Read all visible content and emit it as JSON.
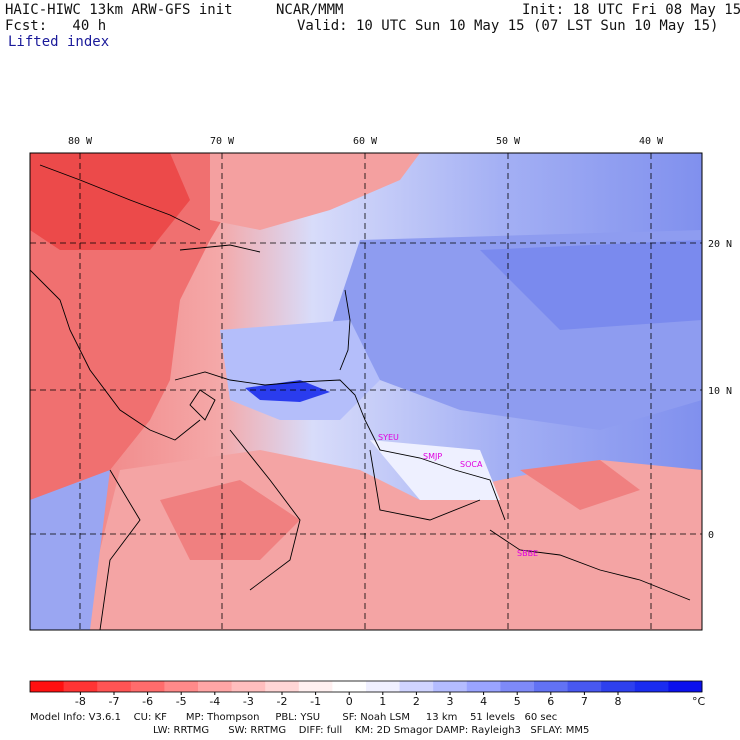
{
  "header": {
    "model_title": "HAIC-HIWC 13km ARW-GFS init",
    "org": "NCAR/MMM",
    "init": "Init: 18 UTC Fri 08 May 15",
    "forecast": "Fcst:   40 h",
    "valid": "Valid: 10 UTC Sun 10 May 15 (07 LST Sun 10 May 15)",
    "field": "Lifted index"
  },
  "map": {
    "lon_labels": [
      "80 W",
      "70 W",
      "60 W",
      "50 W",
      "40 W"
    ],
    "lat_labels": [
      "20 N",
      "10 N",
      "0"
    ],
    "stations": [
      "SYEU",
      "SMJP",
      "SOCA",
      "SBBE"
    ],
    "colors": {
      "warm": "#f06a6a",
      "cool": "#7f8ff0",
      "deep_cool": "#2233ee",
      "border": "#000000"
    }
  },
  "legend": {
    "ticks": [
      "-8",
      "-7",
      "-6",
      "-5",
      "-4",
      "-3",
      "-2",
      "-1",
      "0",
      "1",
      "2",
      "3",
      "4",
      "5",
      "6",
      "7",
      "8"
    ],
    "unit": "°C",
    "colors": [
      "#ff1010",
      "#ff3434",
      "#ff5454",
      "#ff6c6c",
      "#ff8a8a",
      "#ffa6a6",
      "#ffbebe",
      "#ffd6d6",
      "#fff0f0",
      "#ffffff",
      "#f0f0ff",
      "#d0d4ff",
      "#b4bcff",
      "#9aa4ff",
      "#7e8af8",
      "#6272f4",
      "#4858f0",
      "#2e40ee",
      "#1a2cf0",
      "#0a10ee"
    ]
  },
  "footer": {
    "line1": "Model Info: V3.6.1    CU: KF      MP: Thompson     PBL: YSU       SF: Noah LSM     13 km    51 levels   60 sec",
    "line2": "LW: RRTMG      SW: RRTMG    DIFF: full    KM: 2D Smagor DAMP: Rayleigh3   SFLAY: MM5"
  }
}
